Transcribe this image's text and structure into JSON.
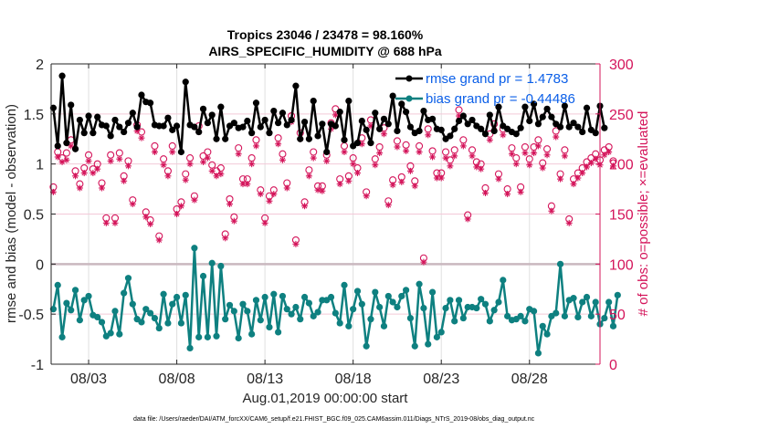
{
  "chart_data": {
    "type": "line",
    "title": [
      "Tropics 23046 / 23478 = 98.160%",
      "AIRS_SPECIFIC_HUMIDITY @ 688 hPa"
    ],
    "xlabel": "Aug.01,2019 00:00:00 start",
    "ylabel": "rmse and bias (model - observation)",
    "ylabel_right": "# of obs: o=possible; ×=evaluated",
    "footnote": "data file: /Users/raeder/DAI/ATM_forcXX/CAM6_setup/f.e21.FHIST_BGC.f09_025.CAM6assim.011/Diags_NTrS_2019-08/obs_diag_output.nc",
    "x_ticks": [
      {
        "day": 3,
        "label": "08/03"
      },
      {
        "day": 8,
        "label": "08/08"
      },
      {
        "day": 13,
        "label": "08/13"
      },
      {
        "day": 18,
        "label": "08/18"
      },
      {
        "day": 23,
        "label": "08/23"
      },
      {
        "day": 28,
        "label": "08/28"
      }
    ],
    "xlim_days": [
      0.875,
      32.0
    ],
    "x_start_day": 1.0,
    "x_step_days": 0.25,
    "ylim": [
      -1,
      2
    ],
    "y_ticks": [
      -1,
      -0.5,
      0,
      0.5,
      1,
      1.5,
      2
    ],
    "y_tick_labels": [
      "-1",
      "-0.5",
      "0",
      "0.5",
      "1",
      "1.5",
      "2"
    ],
    "ylim_right": [
      0,
      300
    ],
    "y_ticks_right": [
      0,
      50,
      100,
      150,
      200,
      250,
      300
    ],
    "y_tick_labels_right": [
      "0",
      "50",
      "100",
      "150",
      "200",
      "250",
      "300"
    ],
    "grid": true,
    "zero_line": 0,
    "legend_position": "top-right",
    "colors": {
      "rmse": "#000000",
      "bias": "#0e8080",
      "obs": "#d4145a",
      "legend_text": "#0b5fe8",
      "zero_line": "#c9b8bf",
      "grid": "#e0e0e0",
      "right_grid": "#f3c9d8"
    },
    "series": [
      {
        "name": "rmse grand pr = 1.4783",
        "axis": "left",
        "values": [
          1.56,
          1.18,
          1.88,
          1.21,
          1.59,
          1.15,
          1.44,
          1.31,
          1.48,
          1.31,
          1.47,
          1.39,
          1.38,
          1.28,
          1.44,
          1.37,
          1.32,
          1.41,
          1.51,
          1.37,
          1.69,
          1.62,
          1.61,
          1.39,
          1.38,
          1.38,
          1.46,
          1.34,
          1.38,
          1.12,
          1.82,
          1.39,
          1.37,
          1.32,
          1.55,
          1.41,
          1.49,
          1.25,
          1.57,
          1.25,
          1.38,
          1.41,
          1.36,
          1.37,
          1.43,
          1.31,
          1.61,
          1.37,
          1.44,
          1.31,
          1.53,
          1.41,
          1.51,
          1.39,
          1.44,
          1.78,
          1.25,
          1.42,
          1.25,
          1.63,
          1.28,
          1.4,
          1.12,
          1.4,
          1.38,
          1.52,
          1.24,
          1.63,
          1.18,
          1.21,
          1.43,
          1.34,
          1.21,
          1.51,
          1.35,
          1.45,
          1.4,
          1.68,
          1.33,
          1.6,
          1.52,
          1.37,
          1.31,
          1.33,
          1.53,
          1.44,
          1.45,
          1.35,
          1.34,
          1.25,
          1.28,
          1.35,
          1.43,
          1.48,
          1.4,
          1.44,
          1.38,
          1.35,
          1.3,
          1.49,
          1.33,
          1.57,
          1.38,
          1.35,
          1.32,
          1.3,
          1.36,
          1.57,
          1.43,
          1.6,
          1.4,
          1.47,
          1.55,
          1.47,
          1.4,
          1.37,
          1.58,
          1.37,
          1.41,
          1.37,
          1.32,
          1.56,
          1.34,
          1.31,
          1.58,
          1.36
        ]
      },
      {
        "name": "bias grand pr = -0.44486",
        "axis": "left",
        "values": [
          -0.45,
          -0.21,
          -0.73,
          -0.39,
          -0.46,
          -0.26,
          -0.56,
          -0.36,
          -0.32,
          -0.51,
          -0.53,
          -0.58,
          -0.72,
          -0.69,
          -0.47,
          -0.7,
          -0.29,
          -0.14,
          -0.4,
          -0.55,
          -0.58,
          -0.45,
          -0.49,
          -0.54,
          -0.64,
          -0.3,
          -0.59,
          -0.4,
          -0.33,
          -0.59,
          -0.31,
          -0.84,
          0.16,
          -0.73,
          -0.12,
          -0.73,
          0.01,
          -0.72,
          -0.02,
          -0.55,
          -0.41,
          -0.47,
          -0.74,
          -0.4,
          -0.47,
          -0.7,
          -0.36,
          -0.56,
          -0.33,
          -0.63,
          -0.3,
          -0.68,
          -0.32,
          -0.45,
          -0.5,
          -0.43,
          -0.55,
          -0.33,
          -0.39,
          -0.52,
          -0.48,
          -0.36,
          -0.36,
          -0.33,
          -0.49,
          -0.59,
          -0.21,
          -0.62,
          -0.45,
          -0.27,
          -0.4,
          -0.82,
          -0.55,
          -0.28,
          -0.43,
          -0.62,
          -0.32,
          -0.38,
          -0.43,
          -0.32,
          -0.26,
          -0.54,
          -0.82,
          -0.2,
          -0.44,
          -0.8,
          -0.28,
          -0.73,
          -0.68,
          -0.44,
          -0.36,
          -0.57,
          -0.36,
          -0.54,
          -0.43,
          -0.43,
          -0.44,
          -0.35,
          -0.4,
          -0.57,
          -0.46,
          -0.38,
          -0.16,
          -0.52,
          -0.56,
          -0.55,
          -0.52,
          -0.57,
          -0.45,
          -0.47,
          -0.89,
          -0.62,
          -0.7,
          -0.52,
          -0.49,
          -0.0,
          -0.52,
          -0.36,
          -0.34,
          -0.53,
          -0.38,
          -0.33,
          -0.52,
          -0.38,
          -0.6,
          -0.54,
          -0.38,
          -0.62,
          -0.31
        ]
      }
    ],
    "obs_possible": [
      177,
      212,
      206,
      211,
      224,
      193,
      180,
      196,
      209,
      195,
      200,
      181,
      146,
      209,
      146,
      211,
      188,
      203,
      164,
      239,
      232,
      152,
      144,
      218,
      128,
      205,
      193,
      218,
      155,
      162,
      190,
      206,
      168,
      238,
      208,
      212,
      199,
      193,
      196,
      130,
      165,
      147,
      216,
      185,
      185,
      206,
      224,
      174,
      146,
      168,
      174,
      226,
      210,
      181,
      248,
      124,
      231,
      162,
      194,
      212,
      178,
      178,
      209,
      241,
      255,
      185,
      218,
      188,
      206,
      196,
      226,
      172,
      244,
      205,
      217,
      236,
      163,
      184,
      223,
      187,
      219,
      198,
      183,
      218,
      106,
      235,
      213,
      191,
      191,
      212,
      204,
      214,
      254,
      224,
      149,
      214,
      202,
      200,
      176,
      230,
      240,
      190,
      235,
      175,
      216,
      206,
      177,
      217,
      205,
      217,
      224,
      201,
      215,
      158,
      233,
      190,
      214,
      145,
      185,
      191,
      196,
      202,
      206,
      210,
      204,
      214,
      217,
      203
    ],
    "obs_evaluated": [
      172,
      207,
      202,
      204,
      218,
      188,
      176,
      191,
      203,
      191,
      195,
      176,
      141,
      203,
      141,
      205,
      183,
      198,
      160,
      233,
      226,
      147,
      140,
      212,
      124,
      199,
      188,
      212,
      150,
      158,
      184,
      200,
      164,
      232,
      202,
      206,
      193,
      188,
      190,
      126,
      160,
      143,
      210,
      180,
      180,
      200,
      218,
      170,
      141,
      163,
      170,
      220,
      204,
      176,
      242,
      120,
      225,
      158,
      188,
      206,
      174,
      173,
      203,
      235,
      249,
      180,
      212,
      183,
      200,
      191,
      220,
      168,
      238,
      199,
      211,
      230,
      159,
      179,
      217,
      182,
      213,
      193,
      178,
      212,
      102,
      229,
      207,
      186,
      186,
      206,
      198,
      208,
      248,
      218,
      145,
      208,
      197,
      195,
      171,
      224,
      234,
      185,
      229,
      170,
      210,
      200,
      172,
      211,
      199,
      211,
      218,
      196,
      209,
      153,
      227,
      185,
      208,
      141,
      180,
      186,
      191,
      197,
      201,
      205,
      199,
      209,
      212,
      198
    ]
  }
}
